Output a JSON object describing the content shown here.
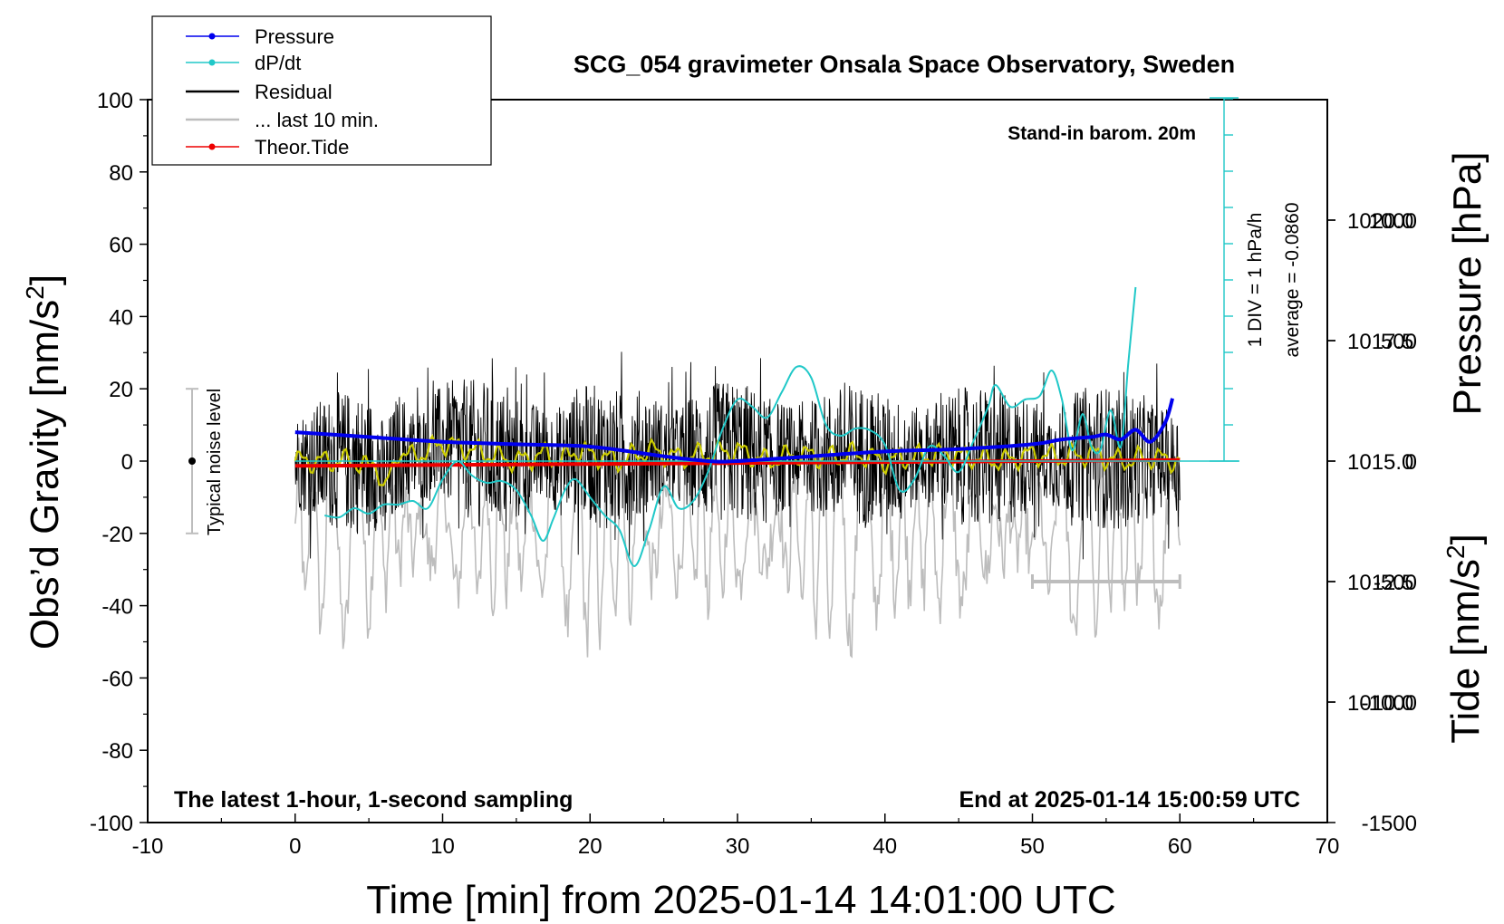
{
  "chart_data": {
    "type": "line",
    "title": "SCG_054 gravimeter Onsala Space Observatory, Sweden",
    "xlabel": "Time [min] from 2025-01-14 14:01:00 UTC",
    "ylabel_left": "Obs'd Gravity [nm/s2]",
    "ylabel_left_text": "Obs’d Gravity [nm/s",
    "ylabel_left_close": "]",
    "ylabel_right_top": "Pressure [hPa]",
    "ylabel_right_bottom": "Tide [nm/s2]",
    "ylabel_right_bottom_text": "Tide [nm/s",
    "ylabel_right_bottom_close": "]",
    "superscript": "2",
    "xlim": [
      -10,
      70
    ],
    "ylim_left": [
      -100,
      100
    ],
    "ylim_pressure": [
      1007.5,
      1022.5
    ],
    "ylim_tide": [
      -1500,
      1500
    ],
    "x_ticks": [
      -10,
      0,
      10,
      20,
      30,
      40,
      50,
      60,
      70
    ],
    "x_tick_labels": [
      "-10",
      "0",
      "10",
      "20",
      "30",
      "40",
      "50",
      "60",
      "70"
    ],
    "y_left_ticks": [
      -100,
      -80,
      -60,
      -40,
      -20,
      0,
      20,
      40,
      60,
      80,
      100
    ],
    "y_left_tick_labels": [
      "-100",
      "-80",
      "-60",
      "-40",
      "-20",
      "0",
      "20",
      "40",
      "60",
      "80",
      "100"
    ],
    "pressure_ticks": [
      1010.0,
      1012.5,
      1015.0,
      1017.5,
      1020.0
    ],
    "pressure_tick_labels": [
      "1010.0",
      "1012.5",
      "1015.0",
      "1017.5",
      "1020.0"
    ],
    "tide_ticks": [
      -1500,
      -1000,
      -500,
      0,
      500,
      1000
    ],
    "tide_tick_labels": [
      "-1500",
      "-1000",
      "-500",
      "0",
      "500",
      "1000"
    ],
    "legend": {
      "position": "top-left",
      "entries": [
        {
          "label": "Pressure",
          "color": "#0000ee"
        },
        {
          "label": "dP/dt",
          "color": "#20c8c8"
        },
        {
          "label": "Residual",
          "color": "#000000"
        },
        {
          "label": "... last 10 min.",
          "color": "#bdbdbd"
        },
        {
          "label": "Theor.Tide",
          "color": "#ee0000"
        }
      ]
    },
    "annotations": {
      "barometer": "Stand-in barom. 20m",
      "div_scale": "1 DIV = 1 hPa/h",
      "average": "average = -0.0860",
      "noise": "Typical noise level",
      "sampling": "The latest 1-hour, 1-second sampling",
      "end_time": "End at 2025-01-14 15:00:59 UTC"
    },
    "noise_range_nm_s2": [
      -20,
      20
    ],
    "last10min_range_min": [
      50,
      60
    ],
    "series": [
      {
        "name": "Pressure",
        "axis": "pressure_hPa",
        "x": [
          0,
          5,
          10,
          15,
          20,
          25,
          28,
          30,
          35,
          40,
          45,
          50,
          52,
          54,
          55,
          56,
          57,
          58,
          59,
          59.5
        ],
        "values": [
          1015.6,
          1015.5,
          1015.4,
          1015.35,
          1015.3,
          1015.1,
          1015.0,
          1015.0,
          1015.1,
          1015.2,
          1015.25,
          1015.35,
          1015.45,
          1015.5,
          1015.55,
          1015.45,
          1015.65,
          1015.4,
          1015.8,
          1016.3
        ]
      },
      {
        "name": "dP/dt",
        "axis": "dpdt_div",
        "baseline_hPa": 1015.0,
        "x": [
          2,
          3,
          4,
          5,
          6,
          7,
          8,
          9,
          10,
          11,
          12,
          13,
          14,
          15,
          16,
          16.8,
          17.5,
          18.3,
          19,
          20,
          21,
          22,
          23,
          24,
          25,
          26,
          27,
          28,
          29,
          30,
          31,
          32,
          33,
          34,
          35,
          36,
          37,
          38,
          39,
          40,
          41,
          42,
          43,
          44,
          45,
          46,
          47,
          47.5,
          48.5,
          49.5,
          50.5,
          51.3,
          52,
          52.7,
          53.4,
          54,
          54.6,
          55.3,
          56,
          56.5,
          57
        ],
        "values": [
          -1.5,
          -1.55,
          -1.3,
          -1.45,
          -1.2,
          -1.2,
          -1.1,
          -1.3,
          -0.5,
          0.0,
          -0.4,
          -0.6,
          -0.55,
          -0.8,
          -1.5,
          -2.2,
          -1.6,
          -0.8,
          -0.5,
          -1.0,
          -1.5,
          -1.9,
          -2.9,
          -1.9,
          -0.7,
          -1.3,
          -1.1,
          -0.3,
          0.9,
          1.7,
          1.5,
          1.2,
          1.9,
          2.6,
          2.3,
          1.0,
          0.7,
          0.9,
          0.85,
          0.45,
          -0.8,
          -0.5,
          0.4,
          0.15,
          -0.3,
          0.55,
          1.5,
          2.1,
          1.5,
          1.7,
          1.8,
          2.5,
          1.7,
          0.3,
          1.3,
          0.4,
          0.3,
          1.4,
          0.4,
          2.7,
          4.8
        ]
      },
      {
        "name": "Residual (1-min smoothed)",
        "axis": "gravity_nm_s2",
        "x": [
          0,
          2,
          4,
          5,
          5.5,
          6,
          6.5,
          7,
          8,
          9,
          10,
          11,
          12,
          13,
          14,
          15,
          16,
          17,
          18,
          19,
          20,
          22,
          24,
          26,
          28,
          30,
          32,
          34,
          36,
          38,
          40,
          42,
          44,
          46,
          48,
          50,
          52,
          54,
          56,
          58,
          60
        ],
        "values": [
          0,
          0,
          0,
          -2,
          0,
          -8,
          -4,
          3,
          1,
          3,
          5,
          4,
          3,
          2,
          1,
          0,
          1,
          2,
          0,
          3,
          2,
          0,
          3,
          1,
          2,
          3,
          0,
          2,
          1,
          2,
          0,
          1,
          2,
          1,
          0,
          2,
          1,
          2,
          0,
          1,
          0
        ]
      },
      {
        "name": "Theor.Tide",
        "axis": "tide_nm_s2",
        "x": [
          0,
          10,
          20,
          30,
          40,
          50,
          60
        ],
        "values": [
          -20,
          -16,
          -12,
          -8,
          -4,
          0,
          5
        ]
      }
    ]
  }
}
